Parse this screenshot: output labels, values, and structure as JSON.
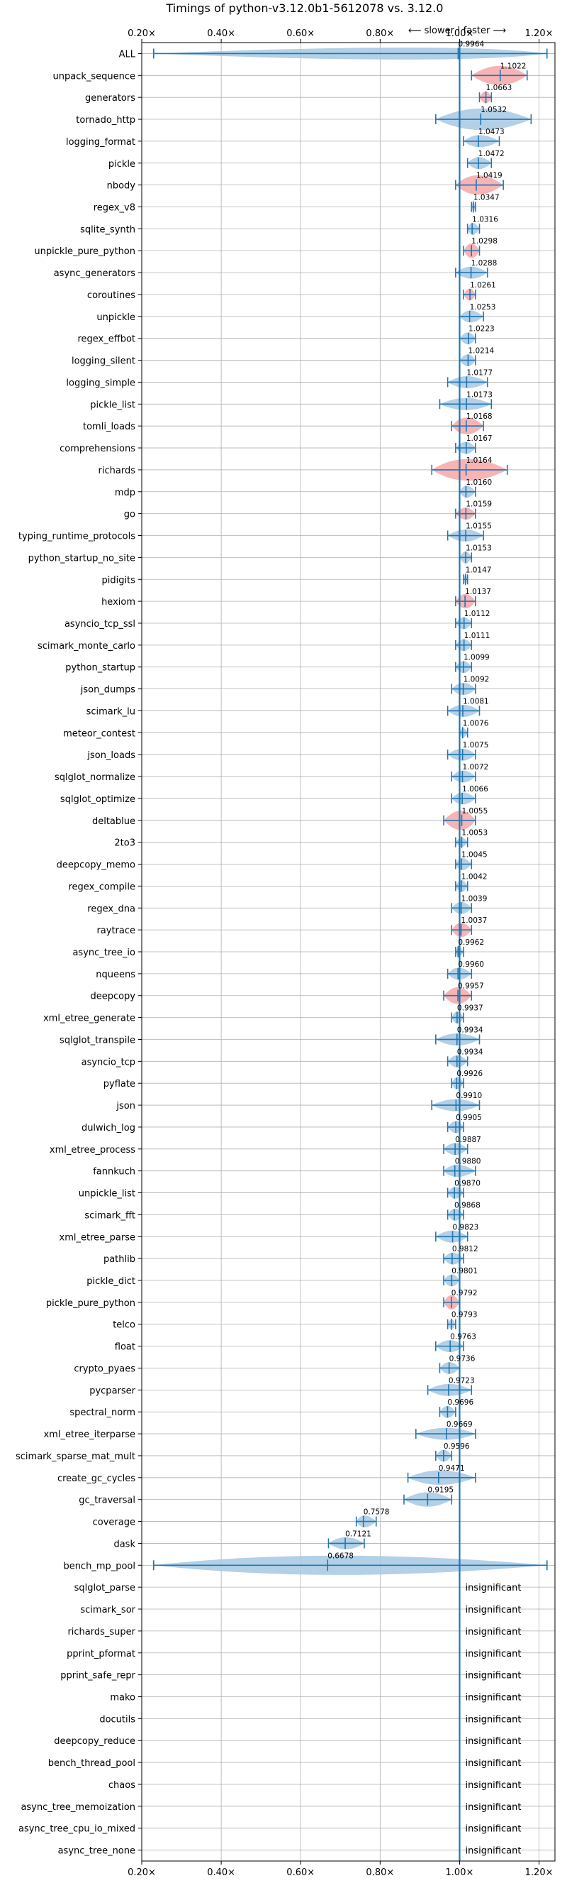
{
  "chart_data": {
    "type": "violin",
    "title": "Timings of python-v3.12.0b1-5612078 vs. 3.12.0",
    "direction_note": "⟵ slower  |  faster ⟶",
    "xlim": [
      0.2,
      1.24
    ],
    "x_ticks": [
      0.2,
      0.4,
      0.6,
      0.8,
      1.0,
      1.2
    ],
    "x_tick_labels": [
      "0.20×",
      "0.40×",
      "0.60×",
      "0.80×",
      "1.00×",
      "1.20×"
    ],
    "reference_line": 1.0,
    "grid": true,
    "colors": {
      "faster": "#a6c8e3",
      "slower": "#f4a7a9",
      "errorbar": "#1f77b4",
      "grid": "#b0b0b0"
    },
    "insignificant_label": "insignificant",
    "benchmarks": [
      {
        "name": "ALL",
        "mean": 0.9964,
        "lo": 0.23,
        "hi": 1.22,
        "width": 0.5,
        "slower": false,
        "label": "0.9964"
      },
      {
        "name": "unpack_sequence",
        "mean": 1.1022,
        "lo": 1.03,
        "hi": 1.17,
        "width": 0.8,
        "slower": true,
        "label": "1.1022"
      },
      {
        "name": "generators",
        "mean": 1.0663,
        "lo": 1.05,
        "hi": 1.08,
        "width": 0.5,
        "slower": true,
        "label": "1.0663"
      },
      {
        "name": "tornado_http",
        "mean": 1.0532,
        "lo": 0.94,
        "hi": 1.18,
        "width": 0.9,
        "slower": false,
        "label": "1.0532"
      },
      {
        "name": "logging_format",
        "mean": 1.0473,
        "lo": 1.01,
        "hi": 1.1,
        "width": 0.5,
        "slower": false,
        "label": "1.0473"
      },
      {
        "name": "pickle",
        "mean": 1.0472,
        "lo": 1.02,
        "hi": 1.08,
        "width": 0.5,
        "slower": false,
        "label": "1.0472"
      },
      {
        "name": "nbody",
        "mean": 1.0419,
        "lo": 0.99,
        "hi": 1.11,
        "width": 0.8,
        "slower": true,
        "label": "1.0419"
      },
      {
        "name": "regex_v8",
        "mean": 1.0347,
        "lo": 1.03,
        "hi": 1.04,
        "width": 0.4,
        "slower": false,
        "label": "1.0347"
      },
      {
        "name": "sqlite_synth",
        "mean": 1.0316,
        "lo": 1.02,
        "hi": 1.05,
        "width": 0.5,
        "slower": false,
        "label": "1.0316"
      },
      {
        "name": "unpickle_pure_python",
        "mean": 1.0298,
        "lo": 1.01,
        "hi": 1.05,
        "width": 0.6,
        "slower": true,
        "label": "1.0298"
      },
      {
        "name": "async_generators",
        "mean": 1.0288,
        "lo": 0.99,
        "hi": 1.07,
        "width": 0.5,
        "slower": false,
        "label": "1.0288"
      },
      {
        "name": "coroutines",
        "mean": 1.0261,
        "lo": 1.01,
        "hi": 1.04,
        "width": 0.5,
        "slower": true,
        "label": "1.0261"
      },
      {
        "name": "unpickle",
        "mean": 1.0253,
        "lo": 1.0,
        "hi": 1.06,
        "width": 0.5,
        "slower": false,
        "label": "1.0253"
      },
      {
        "name": "regex_effbot",
        "mean": 1.0223,
        "lo": 1.0,
        "hi": 1.04,
        "width": 0.5,
        "slower": false,
        "label": "1.0223"
      },
      {
        "name": "logging_silent",
        "mean": 1.0214,
        "lo": 1.0,
        "hi": 1.04,
        "width": 0.5,
        "slower": false,
        "label": "1.0214"
      },
      {
        "name": "logging_simple",
        "mean": 1.0177,
        "lo": 0.97,
        "hi": 1.07,
        "width": 0.5,
        "slower": false,
        "label": "1.0177"
      },
      {
        "name": "pickle_list",
        "mean": 1.0173,
        "lo": 0.95,
        "hi": 1.08,
        "width": 0.5,
        "slower": false,
        "label": "1.0173"
      },
      {
        "name": "tomli_loads",
        "mean": 1.0168,
        "lo": 0.98,
        "hi": 1.06,
        "width": 0.7,
        "slower": true,
        "label": "1.0168"
      },
      {
        "name": "comprehensions",
        "mean": 1.0167,
        "lo": 0.99,
        "hi": 1.04,
        "width": 0.5,
        "slower": false,
        "label": "1.0167"
      },
      {
        "name": "richards",
        "mean": 1.0164,
        "lo": 0.93,
        "hi": 1.12,
        "width": 0.9,
        "slower": true,
        "label": "1.0164"
      },
      {
        "name": "mdp",
        "mean": 1.016,
        "lo": 1.0,
        "hi": 1.04,
        "width": 0.5,
        "slower": false,
        "label": "1.0160"
      },
      {
        "name": "go",
        "mean": 1.0159,
        "lo": 0.99,
        "hi": 1.04,
        "width": 0.5,
        "slower": true,
        "label": "1.0159"
      },
      {
        "name": "typing_runtime_protocols",
        "mean": 1.0155,
        "lo": 0.97,
        "hi": 1.06,
        "width": 0.5,
        "slower": false,
        "label": "1.0155"
      },
      {
        "name": "python_startup_no_site",
        "mean": 1.0153,
        "lo": 1.0,
        "hi": 1.03,
        "width": 0.5,
        "slower": false,
        "label": "1.0153"
      },
      {
        "name": "pidigits",
        "mean": 1.0147,
        "lo": 1.01,
        "hi": 1.02,
        "width": 0.4,
        "slower": false,
        "label": "1.0147"
      },
      {
        "name": "hexiom",
        "mean": 1.0137,
        "lo": 0.99,
        "hi": 1.04,
        "width": 0.6,
        "slower": true,
        "label": "1.0137"
      },
      {
        "name": "asyncio_tcp_ssl",
        "mean": 1.0112,
        "lo": 0.99,
        "hi": 1.03,
        "width": 0.5,
        "slower": false,
        "label": "1.0112"
      },
      {
        "name": "scimark_monte_carlo",
        "mean": 1.0111,
        "lo": 0.99,
        "hi": 1.03,
        "width": 0.5,
        "slower": false,
        "label": "1.0111"
      },
      {
        "name": "python_startup",
        "mean": 1.0099,
        "lo": 0.99,
        "hi": 1.03,
        "width": 0.5,
        "slower": false,
        "label": "1.0099"
      },
      {
        "name": "json_dumps",
        "mean": 1.0092,
        "lo": 0.98,
        "hi": 1.04,
        "width": 0.5,
        "slower": false,
        "label": "1.0092"
      },
      {
        "name": "scimark_lu",
        "mean": 1.0081,
        "lo": 0.97,
        "hi": 1.05,
        "width": 0.5,
        "slower": false,
        "label": "1.0081"
      },
      {
        "name": "meteor_contest",
        "mean": 1.0076,
        "lo": 1.0,
        "hi": 1.02,
        "width": 0.4,
        "slower": false,
        "label": "1.0076"
      },
      {
        "name": "json_loads",
        "mean": 1.0075,
        "lo": 0.97,
        "hi": 1.04,
        "width": 0.5,
        "slower": false,
        "label": "1.0075"
      },
      {
        "name": "sqlglot_normalize",
        "mean": 1.0072,
        "lo": 0.98,
        "hi": 1.04,
        "width": 0.5,
        "slower": false,
        "label": "1.0072"
      },
      {
        "name": "sqlglot_optimize",
        "mean": 1.0066,
        "lo": 0.98,
        "hi": 1.04,
        "width": 0.5,
        "slower": false,
        "label": "1.0066"
      },
      {
        "name": "deltablue",
        "mean": 1.0055,
        "lo": 0.96,
        "hi": 1.04,
        "width": 0.8,
        "slower": true,
        "label": "1.0055"
      },
      {
        "name": "2to3",
        "mean": 1.0053,
        "lo": 0.99,
        "hi": 1.02,
        "width": 0.4,
        "slower": false,
        "label": "1.0053"
      },
      {
        "name": "deepcopy_memo",
        "mean": 1.0045,
        "lo": 0.99,
        "hi": 1.03,
        "width": 0.5,
        "slower": false,
        "label": "1.0045"
      },
      {
        "name": "regex_compile",
        "mean": 1.0042,
        "lo": 0.99,
        "hi": 1.02,
        "width": 0.5,
        "slower": false,
        "label": "1.0042"
      },
      {
        "name": "regex_dna",
        "mean": 1.0039,
        "lo": 0.98,
        "hi": 1.03,
        "width": 0.5,
        "slower": false,
        "label": "1.0039"
      },
      {
        "name": "raytrace",
        "mean": 1.0037,
        "lo": 0.98,
        "hi": 1.03,
        "width": 0.6,
        "slower": true,
        "label": "1.0037"
      },
      {
        "name": "async_tree_io",
        "mean": 0.9962,
        "lo": 0.99,
        "hi": 1.01,
        "width": 0.4,
        "slower": false,
        "label": "0.9962"
      },
      {
        "name": "nqueens",
        "mean": 0.996,
        "lo": 0.97,
        "hi": 1.03,
        "width": 0.5,
        "slower": false,
        "label": "0.9960"
      },
      {
        "name": "deepcopy",
        "mean": 0.9957,
        "lo": 0.96,
        "hi": 1.03,
        "width": 0.7,
        "slower": true,
        "label": "0.9957"
      },
      {
        "name": "xml_etree_generate",
        "mean": 0.9937,
        "lo": 0.98,
        "hi": 1.01,
        "width": 0.5,
        "slower": false,
        "label": "0.9937"
      },
      {
        "name": "sqlglot_transpile",
        "mean": 0.9934,
        "lo": 0.94,
        "hi": 1.05,
        "width": 0.5,
        "slower": false,
        "label": "0.9934"
      },
      {
        "name": "asyncio_tcp",
        "mean": 0.9934,
        "lo": 0.97,
        "hi": 1.02,
        "width": 0.5,
        "slower": false,
        "label": "0.9934"
      },
      {
        "name": "pyflate",
        "mean": 0.9926,
        "lo": 0.98,
        "hi": 1.01,
        "width": 0.5,
        "slower": false,
        "label": "0.9926"
      },
      {
        "name": "json",
        "mean": 0.991,
        "lo": 0.93,
        "hi": 1.05,
        "width": 0.5,
        "slower": false,
        "label": "0.9910"
      },
      {
        "name": "dulwich_log",
        "mean": 0.9905,
        "lo": 0.97,
        "hi": 1.01,
        "width": 0.5,
        "slower": false,
        "label": "0.9905"
      },
      {
        "name": "xml_etree_process",
        "mean": 0.9887,
        "lo": 0.96,
        "hi": 1.02,
        "width": 0.5,
        "slower": false,
        "label": "0.9887"
      },
      {
        "name": "fannkuch",
        "mean": 0.988,
        "lo": 0.96,
        "hi": 1.04,
        "width": 0.5,
        "slower": false,
        "label": "0.9880"
      },
      {
        "name": "unpickle_list",
        "mean": 0.987,
        "lo": 0.97,
        "hi": 1.01,
        "width": 0.5,
        "slower": false,
        "label": "0.9870"
      },
      {
        "name": "scimark_fft",
        "mean": 0.9868,
        "lo": 0.97,
        "hi": 1.01,
        "width": 0.5,
        "slower": false,
        "label": "0.9868"
      },
      {
        "name": "xml_etree_parse",
        "mean": 0.9823,
        "lo": 0.94,
        "hi": 1.02,
        "width": 0.5,
        "slower": false,
        "label": "0.9823"
      },
      {
        "name": "pathlib",
        "mean": 0.9812,
        "lo": 0.96,
        "hi": 1.01,
        "width": 0.5,
        "slower": false,
        "label": "0.9812"
      },
      {
        "name": "pickle_dict",
        "mean": 0.9801,
        "lo": 0.96,
        "hi": 1.0,
        "width": 0.5,
        "slower": false,
        "label": "0.9801"
      },
      {
        "name": "pickle_pure_python",
        "mean": 0.9792,
        "lo": 0.96,
        "hi": 1.0,
        "width": 0.6,
        "slower": true,
        "label": "0.9792"
      },
      {
        "name": "telco",
        "mean": 0.9793,
        "lo": 0.97,
        "hi": 0.99,
        "width": 0.4,
        "slower": false,
        "label": "0.9793"
      },
      {
        "name": "float",
        "mean": 0.9763,
        "lo": 0.94,
        "hi": 1.01,
        "width": 0.5,
        "slower": false,
        "label": "0.9763"
      },
      {
        "name": "crypto_pyaes",
        "mean": 0.9736,
        "lo": 0.95,
        "hi": 1.0,
        "width": 0.5,
        "slower": false,
        "label": "0.9736"
      },
      {
        "name": "pycparser",
        "mean": 0.9723,
        "lo": 0.92,
        "hi": 1.03,
        "width": 0.5,
        "slower": false,
        "label": "0.9723"
      },
      {
        "name": "spectral_norm",
        "mean": 0.9696,
        "lo": 0.95,
        "hi": 0.99,
        "width": 0.5,
        "slower": false,
        "label": "0.9696"
      },
      {
        "name": "xml_etree_iterparse",
        "mean": 0.9669,
        "lo": 0.89,
        "hi": 1.04,
        "width": 0.5,
        "slower": false,
        "label": "0.9669"
      },
      {
        "name": "scimark_sparse_mat_mult",
        "mean": 0.9596,
        "lo": 0.94,
        "hi": 0.98,
        "width": 0.5,
        "slower": false,
        "label": "0.9596"
      },
      {
        "name": "create_gc_cycles",
        "mean": 0.9471,
        "lo": 0.87,
        "hi": 1.04,
        "width": 0.6,
        "slower": false,
        "label": "0.9471"
      },
      {
        "name": "gc_traversal",
        "mean": 0.9195,
        "lo": 0.86,
        "hi": 0.98,
        "width": 0.6,
        "slower": false,
        "label": "0.9195"
      },
      {
        "name": "coverage",
        "mean": 0.7578,
        "lo": 0.74,
        "hi": 0.79,
        "width": 0.5,
        "slower": false,
        "label": "0.7578"
      },
      {
        "name": "dask",
        "mean": 0.7121,
        "lo": 0.67,
        "hi": 0.76,
        "width": 0.5,
        "slower": false,
        "label": "0.7121"
      },
      {
        "name": "bench_mp_pool",
        "mean": 0.6678,
        "lo": 0.23,
        "hi": 1.22,
        "width": 0.8,
        "slower": false,
        "label": "0.6678"
      }
    ],
    "insignificant": [
      "sqlglot_parse",
      "scimark_sor",
      "richards_super",
      "pprint_pformat",
      "pprint_safe_repr",
      "mako",
      "docutils",
      "deepcopy_reduce",
      "bench_thread_pool",
      "chaos",
      "async_tree_memoization",
      "async_tree_cpu_io_mixed",
      "async_tree_none"
    ]
  }
}
